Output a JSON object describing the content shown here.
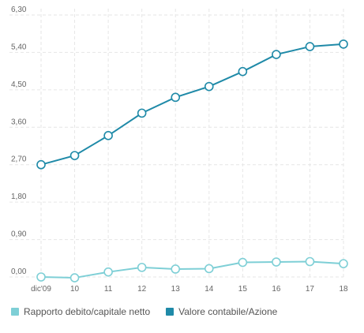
{
  "chart_data": {
    "type": "line",
    "categories": [
      "dic'09",
      "10",
      "11",
      "12",
      "13",
      "14",
      "15",
      "16",
      "17",
      "18"
    ],
    "series": [
      {
        "name": "Rapporto debito/capitale netto",
        "color": "#7ecfd6",
        "values": [
          0.0,
          -0.02,
          0.12,
          0.23,
          0.19,
          0.2,
          0.35,
          0.36,
          0.37,
          0.32
        ]
      },
      {
        "name": "Valore contabile/Azione",
        "color": "#1f8aa8",
        "values": [
          2.7,
          2.92,
          3.4,
          3.94,
          4.32,
          4.58,
          4.94,
          5.35,
          5.54,
          5.6
        ]
      }
    ],
    "y_ticks": [
      "0,00",
      "0,90",
      "1,80",
      "2,70",
      "3,60",
      "4,50",
      "5,40",
      "6,30"
    ],
    "ylim": [
      0,
      6.3
    ],
    "grid": true,
    "legend_position": "bottom-left"
  }
}
